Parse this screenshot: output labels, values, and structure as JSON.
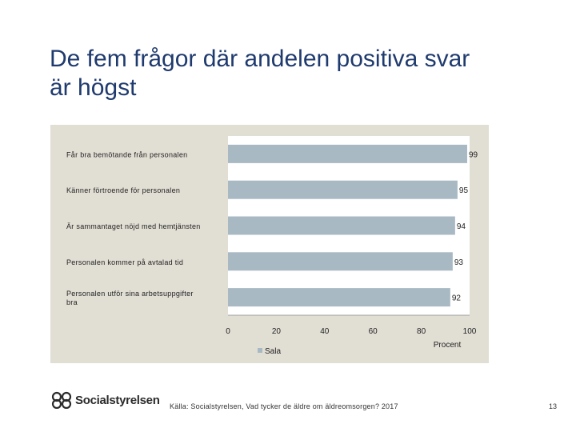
{
  "slide": {
    "title_line1": "De fem frågor där andelen positiva svar",
    "title_line2": "är högst",
    "source": "Källa: Socialstyrelsen, Vad tycker de äldre om äldreomsorgen? 2017",
    "page_number": "13",
    "logo_text": "Socialstyrelsen"
  },
  "chart_data": {
    "type": "bar",
    "orientation": "horizontal",
    "categories": [
      "Får bra bemötande från personalen",
      "Känner förtroende för personalen",
      "Är sammantaget nöjd med hemtjänsten",
      "Personalen kommer på avtalad tid",
      "Personalen utför sina arbetsuppgifter bra"
    ],
    "category_lines": [
      [
        "Får bra bemötande från personalen"
      ],
      [
        "Känner förtroende för personalen"
      ],
      [
        "Är sammantaget nöjd med hemtjänsten"
      ],
      [
        "Personalen kommer på avtalad tid"
      ],
      [
        "Personalen utför sina arbetsuppgifter",
        "bra"
      ]
    ],
    "series": [
      {
        "name": "Sala",
        "values": [
          99,
          95,
          94,
          93,
          92
        ]
      }
    ],
    "xlim": [
      0,
      100
    ],
    "x_ticks": [
      0,
      20,
      40,
      60,
      80,
      100
    ],
    "xlabel": "Procent",
    "legend_position": "bottom",
    "grid": false,
    "colors": {
      "bar": "#a9b9c4",
      "panel": "#e1ded4",
      "plot": "#ffffff"
    }
  }
}
